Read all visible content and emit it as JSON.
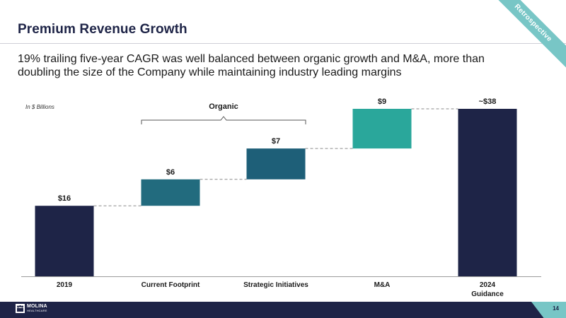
{
  "header": {
    "title": "Premium Revenue Growth",
    "subtitle": "19% trailing five-year CAGR was well balanced between organic growth and M&A, more than doubling the size of the Company while maintaining industry leading margins",
    "retrospective_tag": "Retrospective"
  },
  "chart_data": {
    "type": "bar",
    "subtype": "waterfall",
    "units_note": "In $ Billions",
    "bracket_label": "Organic",
    "categories": [
      "2019",
      "Current Footprint",
      "Strategic Initiatives",
      "M&A",
      "2024\nGuidance"
    ],
    "values": [
      16,
      6,
      7,
      9,
      38
    ],
    "data_labels": [
      "$16",
      "$6",
      "$7",
      "$9",
      "~$38"
    ],
    "bar_kind": [
      "total",
      "increment",
      "increment",
      "increment",
      "total"
    ],
    "colors": [
      "#1e2447",
      "#226b7e",
      "#1e5f78",
      "#2aa79b",
      "#1e2447"
    ],
    "ylim": [
      0,
      38
    ]
  },
  "footer": {
    "logo_name": "MOLINA",
    "logo_sub": "HEALTHCARE",
    "page_number": "14"
  }
}
